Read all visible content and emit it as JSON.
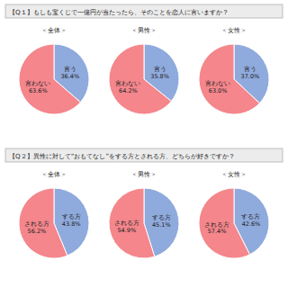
{
  "chart_data": [
    {
      "type": "pie",
      "title": "【Q１】もしも宝くじで一億円が当たったら、そのことを恋人に言いますか？",
      "categories": [
        "言う",
        "言わない"
      ],
      "colors": [
        "#8faadc",
        "#f4868c"
      ],
      "data_labels": true,
      "series": [
        {
          "name": "＜全体＞",
          "values": [
            36.4,
            63.6
          ],
          "value_labels": [
            "36.4%",
            "63.6%"
          ]
        },
        {
          "name": "＜男性＞",
          "values": [
            35.8,
            64.2
          ],
          "value_labels": [
            "35.8%",
            "64.2%"
          ]
        },
        {
          "name": "＜女性＞",
          "values": [
            37.0,
            63.0
          ],
          "value_labels": [
            "37.0%",
            "63.0%"
          ]
        }
      ]
    },
    {
      "type": "pie",
      "title": "【Q２】異性に対して“おもてなし”をする方とされる方、どちらが好きですか？",
      "categories": [
        "する方",
        "される方"
      ],
      "colors": [
        "#8faadc",
        "#f4868c"
      ],
      "data_labels": true,
      "series": [
        {
          "name": "＜全体＞",
          "values": [
            43.8,
            56.2
          ],
          "value_labels": [
            "43.8%",
            "56.2%"
          ]
        },
        {
          "name": "＜男性＞",
          "values": [
            45.1,
            54.9
          ],
          "value_labels": [
            "45.1%",
            "54.9%"
          ]
        },
        {
          "name": "＜女性＞",
          "values": [
            42.6,
            57.4
          ],
          "value_labels": [
            "42.6%",
            "57.4%"
          ]
        }
      ]
    }
  ]
}
